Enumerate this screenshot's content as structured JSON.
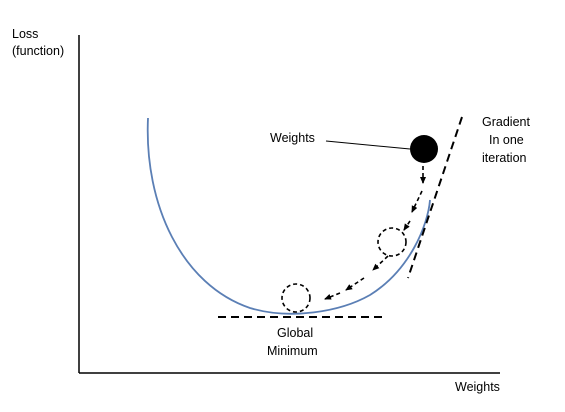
{
  "labels": {
    "y_axis_line1": "Loss",
    "y_axis_line2": "(function)",
    "x_axis": "Weights",
    "weights_pointer": "Weights",
    "gradient_line1": "Gradient",
    "gradient_line2": "In one",
    "gradient_line3": "iteration",
    "minimum_line1": "Global",
    "minimum_line2": "Minimum"
  },
  "colors": {
    "curve": "#5b7fb5",
    "ink": "#000000",
    "background": "#ffffff"
  }
}
